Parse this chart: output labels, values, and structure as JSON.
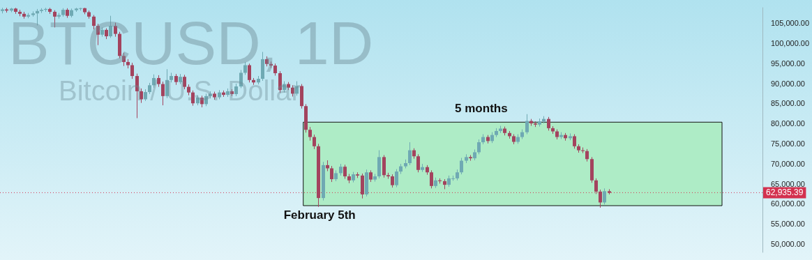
{
  "chart_data": {
    "type": "candlestick",
    "title": "BTCUSD, 1D",
    "subtitle": "Bitcoin / U.S. Dollar",
    "categories": [
      null,
      null,
      null,
      null,
      null,
      null,
      null,
      null,
      null,
      null,
      null,
      null,
      null,
      null,
      null,
      null,
      null,
      null,
      null,
      null,
      null,
      null,
      null,
      null,
      null,
      null,
      null,
      null,
      null,
      null,
      null,
      null,
      null,
      null,
      null,
      null,
      null,
      null,
      null,
      null,
      null,
      null,
      null,
      null,
      null,
      null,
      null,
      null,
      null,
      null,
      null,
      null,
      null,
      null,
      null,
      null,
      null,
      null,
      null,
      null,
      null,
      null,
      null,
      null,
      null,
      null,
      null,
      null,
      null,
      null,
      null,
      null,
      null,
      null,
      null,
      null,
      null,
      null,
      null,
      null,
      null,
      null,
      null,
      null,
      null,
      null,
      null,
      null,
      null,
      null,
      null,
      null,
      null,
      null,
      null,
      null,
      null,
      null,
      null,
      null,
      null,
      null,
      null,
      null,
      null,
      null,
      null,
      null,
      null,
      null,
      null,
      null,
      null,
      null,
      null,
      null,
      null,
      null,
      null,
      null,
      null,
      null,
      null,
      null,
      null,
      null,
      null,
      null,
      null,
      null,
      null,
      null,
      null,
      null,
      null,
      null,
      null,
      null,
      null,
      null,
      null,
      null,
      null,
      null,
      null,
      null,
      null,
      null,
      null,
      null,
      null,
      null,
      null,
      null,
      null,
      null,
      null,
      null,
      null,
      null,
      null,
      null,
      null,
      null,
      null,
      null,
      null,
      null,
      null,
      null,
      null,
      null,
      null,
      null,
      null,
      null
    ],
    "ohlc": [
      [
        108200,
        109000,
        107600,
        108600
      ],
      [
        108600,
        109000,
        107800,
        108300
      ],
      [
        108300,
        109000,
        107900,
        108800
      ],
      [
        108800,
        109000,
        107500,
        108000
      ],
      [
        108000,
        108500,
        106900,
        107500
      ],
      [
        107500,
        108000,
        106300,
        106800
      ],
      [
        106800,
        107700,
        106400,
        107200
      ],
      [
        107200,
        108100,
        106800,
        107600
      ],
      [
        107600,
        108700,
        104600,
        108200
      ],
      [
        108200,
        108900,
        107700,
        108500
      ],
      [
        108500,
        109000,
        108000,
        108700
      ],
      [
        108700,
        109000,
        107500,
        108000
      ],
      [
        108000,
        108400,
        104100,
        106800
      ],
      [
        106800,
        107700,
        106300,
        107200
      ],
      [
        107200,
        108900,
        106800,
        108500
      ],
      [
        108500,
        108900,
        106500,
        107000
      ],
      [
        107000,
        108800,
        106600,
        108400
      ],
      [
        108400,
        109000,
        108000,
        108800
      ],
      [
        108800,
        109000,
        108300,
        108900
      ],
      [
        108900,
        109000,
        107400,
        107900
      ],
      [
        107900,
        108300,
        106300,
        106800
      ],
      [
        106800,
        107200,
        103600,
        104500
      ],
      [
        104500,
        105000,
        99700,
        102300
      ],
      [
        102300,
        104100,
        101800,
        103500
      ],
      [
        103500,
        103900,
        101200,
        101900
      ],
      [
        101900,
        107000,
        101500,
        104500
      ],
      [
        104500,
        105300,
        101800,
        102500
      ],
      [
        102500,
        103000,
        96400,
        97000
      ],
      [
        97000,
        97800,
        94500,
        95500
      ],
      [
        95500,
        96200,
        93900,
        94700
      ],
      [
        94700,
        95300,
        91300,
        92000
      ],
      [
        92000,
        92600,
        81500,
        88200
      ],
      [
        88200,
        88900,
        85300,
        86200
      ],
      [
        86200,
        88700,
        85800,
        88000
      ],
      [
        88000,
        90300,
        87500,
        89700
      ],
      [
        89700,
        92400,
        89100,
        91500
      ],
      [
        91500,
        92200,
        89300,
        90000
      ],
      [
        90000,
        90600,
        84700,
        87000
      ],
      [
        87000,
        93700,
        86500,
        91000
      ],
      [
        91000,
        92800,
        90400,
        92000
      ],
      [
        92000,
        92500,
        89800,
        90500
      ],
      [
        90500,
        92500,
        90000,
        91800
      ],
      [
        91800,
        92300,
        88700,
        89300
      ],
      [
        89300,
        89900,
        87200,
        87900
      ],
      [
        87900,
        88400,
        84600,
        85200
      ],
      [
        85200,
        87200,
        84700,
        86600
      ],
      [
        86600,
        87100,
        84200,
        85000
      ],
      [
        85000,
        87600,
        84500,
        87000
      ],
      [
        87000,
        88200,
        86400,
        87600
      ],
      [
        87600,
        88100,
        86100,
        86700
      ],
      [
        86700,
        88500,
        86200,
        87900
      ],
      [
        87900,
        88400,
        86800,
        87300
      ],
      [
        87300,
        88900,
        86800,
        88200
      ],
      [
        88200,
        88700,
        87000,
        87500
      ],
      [
        87500,
        90100,
        87000,
        89400
      ],
      [
        89400,
        93500,
        89000,
        92800
      ],
      [
        92800,
        95500,
        92300,
        94700
      ],
      [
        94700,
        95100,
        90400,
        91000
      ],
      [
        91000,
        91500,
        89800,
        90400
      ],
      [
        90400,
        92000,
        89900,
        91300
      ],
      [
        91300,
        98000,
        90800,
        96200
      ],
      [
        96200,
        96900,
        94400,
        95000
      ],
      [
        95000,
        95600,
        94000,
        94600
      ],
      [
        94600,
        95100,
        92100,
        92700
      ],
      [
        92700,
        93200,
        87800,
        88500
      ],
      [
        88500,
        90700,
        87900,
        90000
      ],
      [
        90000,
        90500,
        88500,
        89100
      ],
      [
        89100,
        89700,
        86900,
        87600
      ],
      [
        87600,
        90700,
        87100,
        89500
      ],
      [
        89500,
        90000,
        83900,
        84500
      ],
      [
        84500,
        85000,
        77900,
        78600
      ],
      [
        78600,
        79300,
        75900,
        76800
      ],
      [
        76800,
        77400,
        73800,
        74500
      ],
      [
        74500,
        75100,
        59400,
        61600
      ],
      [
        61600,
        70600,
        61000,
        69800
      ],
      [
        69800,
        71000,
        68300,
        69000
      ],
      [
        69000,
        69600,
        65600,
        66300
      ],
      [
        66300,
        68500,
        65800,
        67800
      ],
      [
        67800,
        70100,
        67200,
        69400
      ],
      [
        69400,
        69900,
        66400,
        67000
      ],
      [
        67000,
        67600,
        65300,
        66000
      ],
      [
        66000,
        68100,
        65500,
        67500
      ],
      [
        67500,
        68000,
        66600,
        67200
      ],
      [
        67200,
        67700,
        61500,
        62500
      ],
      [
        62500,
        68700,
        62000,
        68000
      ],
      [
        68000,
        68500,
        65600,
        66200
      ],
      [
        66200,
        67600,
        65700,
        67000
      ],
      [
        67000,
        73500,
        66500,
        71800
      ],
      [
        71800,
        72300,
        66700,
        67300
      ],
      [
        67300,
        67900,
        66400,
        67000
      ],
      [
        67000,
        67500,
        64200,
        64800
      ],
      [
        64800,
        68800,
        64300,
        68200
      ],
      [
        68200,
        70100,
        67600,
        69500
      ],
      [
        69500,
        71200,
        69000,
        70300
      ],
      [
        70300,
        75500,
        69800,
        73500
      ],
      [
        73500,
        74000,
        71400,
        72000
      ],
      [
        72000,
        72500,
        68000,
        68600
      ],
      [
        68600,
        70100,
        68100,
        69300
      ],
      [
        69300,
        69800,
        67400,
        68000
      ],
      [
        68000,
        68500,
        64000,
        64600
      ],
      [
        64600,
        66700,
        64100,
        66000
      ],
      [
        66000,
        66500,
        65200,
        65800
      ],
      [
        65800,
        66300,
        63800,
        64900
      ],
      [
        64900,
        67200,
        64400,
        66500
      ],
      [
        66500,
        67200,
        65900,
        66500
      ],
      [
        66500,
        68700,
        66000,
        68000
      ],
      [
        68000,
        71600,
        67500,
        70900
      ],
      [
        70900,
        72500,
        70300,
        71800
      ],
      [
        71800,
        72300,
        70900,
        71500
      ],
      [
        71500,
        73700,
        71000,
        73000
      ],
      [
        73000,
        76200,
        72500,
        75500
      ],
      [
        75500,
        77500,
        75000,
        76800
      ],
      [
        76800,
        77300,
        75200,
        75800
      ],
      [
        75800,
        78000,
        75300,
        77300
      ],
      [
        77300,
        79000,
        76800,
        78300
      ],
      [
        78300,
        79600,
        77800,
        78900
      ],
      [
        78900,
        79400,
        77200,
        77800
      ],
      [
        77800,
        78300,
        76400,
        77000
      ],
      [
        77000,
        77500,
        75000,
        75600
      ],
      [
        75600,
        77500,
        75100,
        76800
      ],
      [
        76800,
        78700,
        76300,
        78000
      ],
      [
        78000,
        82500,
        77500,
        80800
      ],
      [
        80800,
        81300,
        79600,
        80200
      ],
      [
        80200,
        80700,
        79300,
        79900
      ],
      [
        79900,
        81400,
        79400,
        80700
      ],
      [
        80700,
        82000,
        80200,
        81300
      ],
      [
        81300,
        81800,
        78400,
        79000
      ],
      [
        79000,
        79500,
        77600,
        78200
      ],
      [
        78200,
        78700,
        76200,
        76800
      ],
      [
        76800,
        78000,
        76300,
        77300
      ],
      [
        77300,
        77800,
        75900,
        76500
      ],
      [
        76500,
        77700,
        76000,
        77000
      ],
      [
        77000,
        77500,
        73900,
        74500
      ],
      [
        74500,
        75000,
        72900,
        73500
      ],
      [
        73500,
        74200,
        72800,
        73300
      ],
      [
        73300,
        73800,
        70700,
        71300
      ],
      [
        71300,
        71800,
        65400,
        66000
      ],
      [
        66000,
        66500,
        62600,
        63200
      ],
      [
        63200,
        63700,
        59200,
        60500
      ],
      [
        60500,
        64000,
        60000,
        63300
      ],
      [
        63300,
        63800,
        62500,
        62900
      ],
      null,
      null,
      null,
      null,
      null,
      null,
      null,
      null,
      null,
      null,
      null,
      null,
      null,
      null,
      null,
      null,
      null,
      null,
      null,
      null,
      null,
      null,
      null,
      null,
      null,
      null,
      null,
      null,
      null,
      null,
      null,
      null,
      null,
      null,
      null
    ],
    "ylim": [
      48000,
      109100
    ],
    "yticks": [
      {
        "value": 50000,
        "label": "50,000.00"
      },
      {
        "value": 55000,
        "label": "55,000.00"
      },
      {
        "value": 60000,
        "label": "60,000.00"
      },
      {
        "value": 65000,
        "label": "65,000.00"
      },
      {
        "value": 70000,
        "label": "70,000.00"
      },
      {
        "value": 75000,
        "label": "75,000.00"
      },
      {
        "value": 80000,
        "label": "80,000.00"
      },
      {
        "value": 85000,
        "label": "85,000.00"
      },
      {
        "value": 90000,
        "label": "90,000.00"
      },
      {
        "value": 95000,
        "label": "95,000.00"
      },
      {
        "value": 100000,
        "label": "100,000.00"
      },
      {
        "value": 105000,
        "label": "105,000.00"
      }
    ],
    "ref_lines": [
      {
        "axis": "y",
        "value": 62935.39,
        "label": "62,935.39",
        "color": "#d3314f",
        "line_style": "dotted"
      }
    ],
    "bands": [
      {
        "axis": "y",
        "from": 59700,
        "to": 80500,
        "color": "#aeecc6"
      }
    ],
    "annotations": [
      "5 months",
      "February 5th"
    ],
    "tick_labels": "y",
    "grid": false
  }
}
